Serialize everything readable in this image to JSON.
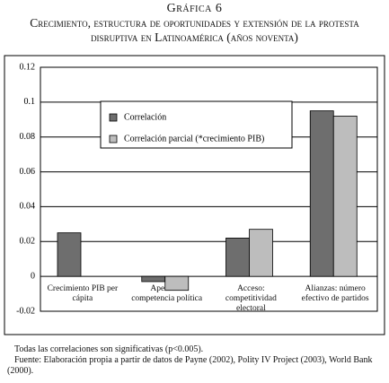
{
  "chart_data": {
    "type": "bar",
    "title": "Gráfica 6",
    "subtitle": "Crecimiento, estructura de oportunidades y extensión de la protesta disruptiva en Latinoamérica (años noventa)",
    "categories": [
      "Crecimiento PIB per cápita",
      "Apertura: competencia política",
      "Acceso: competitividad electoral",
      "Alianzas: número efectivo de partidos"
    ],
    "series": [
      {
        "name": "Correlación",
        "color": "#6e6e6e",
        "values": [
          0.025,
          -0.003,
          0.022,
          0.095
        ]
      },
      {
        "name": "Correlación parcial (*crecimiento PIB)",
        "color": "#bdbdbd",
        "values": [
          null,
          -0.008,
          0.027,
          0.092
        ]
      }
    ],
    "ylim": [
      -0.02,
      0.12
    ],
    "yticks": [
      -0.02,
      0,
      0.02,
      0.04,
      0.06,
      0.08,
      0.1,
      0.12
    ],
    "grid": true,
    "notes": [
      "Todas las correlaciones son significativas (p<0.005).",
      "Fuente: Elaboración propia a partir de datos de Payne (2002), Polity IV Project (2003), World Bank (2000)."
    ]
  }
}
